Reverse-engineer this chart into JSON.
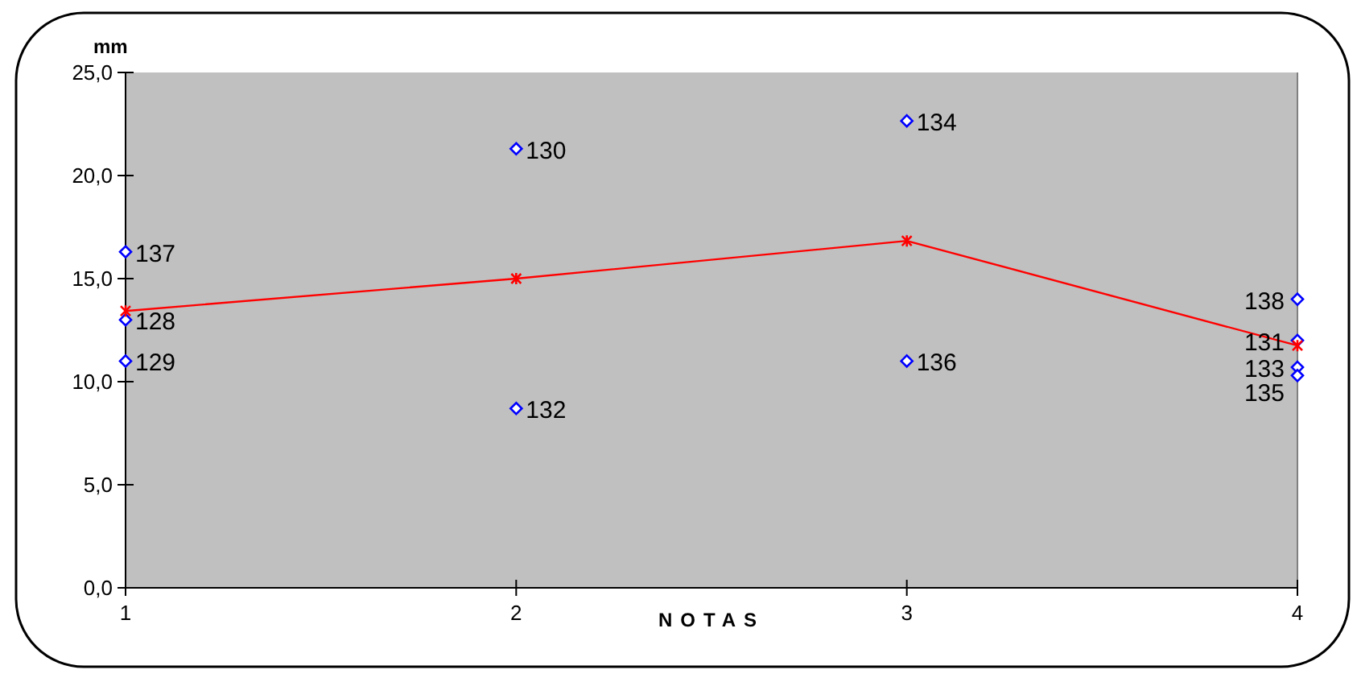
{
  "chart_data": {
    "type": "scatter",
    "ylabel": "mm",
    "xlabel": "NOTAS",
    "xlim": [
      1,
      4
    ],
    "xticks": [
      1,
      2,
      3,
      4
    ],
    "ylim": [
      0,
      25
    ],
    "yticks": [
      {
        "value": 0,
        "label": "0,0"
      },
      {
        "value": 5,
        "label": "5,0"
      },
      {
        "value": 10,
        "label": "10,0"
      },
      {
        "value": 15,
        "label": "15,0"
      },
      {
        "value": 20,
        "label": "20,0"
      },
      {
        "value": 25,
        "label": "25,0"
      }
    ],
    "grid": false,
    "series": [
      {
        "color": "#0000ff",
        "marker": "diamond",
        "x": [
          1,
          1,
          1,
          2,
          2,
          3,
          3,
          4,
          4,
          4,
          4
        ],
        "values": [
          16.3,
          13.0,
          11.0,
          21.3,
          8.7,
          22.65,
          11.0,
          14.0,
          12.0,
          10.7,
          10.3
        ]
      },
      {
        "type": "line",
        "color": "#ff0000",
        "marker": "cross",
        "line_style": "solid",
        "x": [
          1,
          2,
          3,
          4
        ],
        "values": [
          13.43,
          15.0,
          16.83,
          11.75
        ]
      }
    ],
    "annotations": [
      {
        "text": "137",
        "x": 1,
        "y": 16.3
      },
      {
        "text": "128",
        "x": 1,
        "y": 13.0
      },
      {
        "text": "129",
        "x": 1,
        "y": 11.0
      },
      {
        "text": "130",
        "x": 2,
        "y": 21.3
      },
      {
        "text": "132",
        "x": 2,
        "y": 8.7
      },
      {
        "text": "134",
        "x": 3,
        "y": 22.65
      },
      {
        "text": "136",
        "x": 3,
        "y": 11.0
      },
      {
        "text": "138",
        "x": 4,
        "y": 14.0
      },
      {
        "text": "131",
        "x": 4,
        "y": 12.0
      },
      {
        "text": "133",
        "x": 4,
        "y": 10.7
      },
      {
        "text": "135",
        "x": 4,
        "y": 10.3
      }
    ]
  }
}
